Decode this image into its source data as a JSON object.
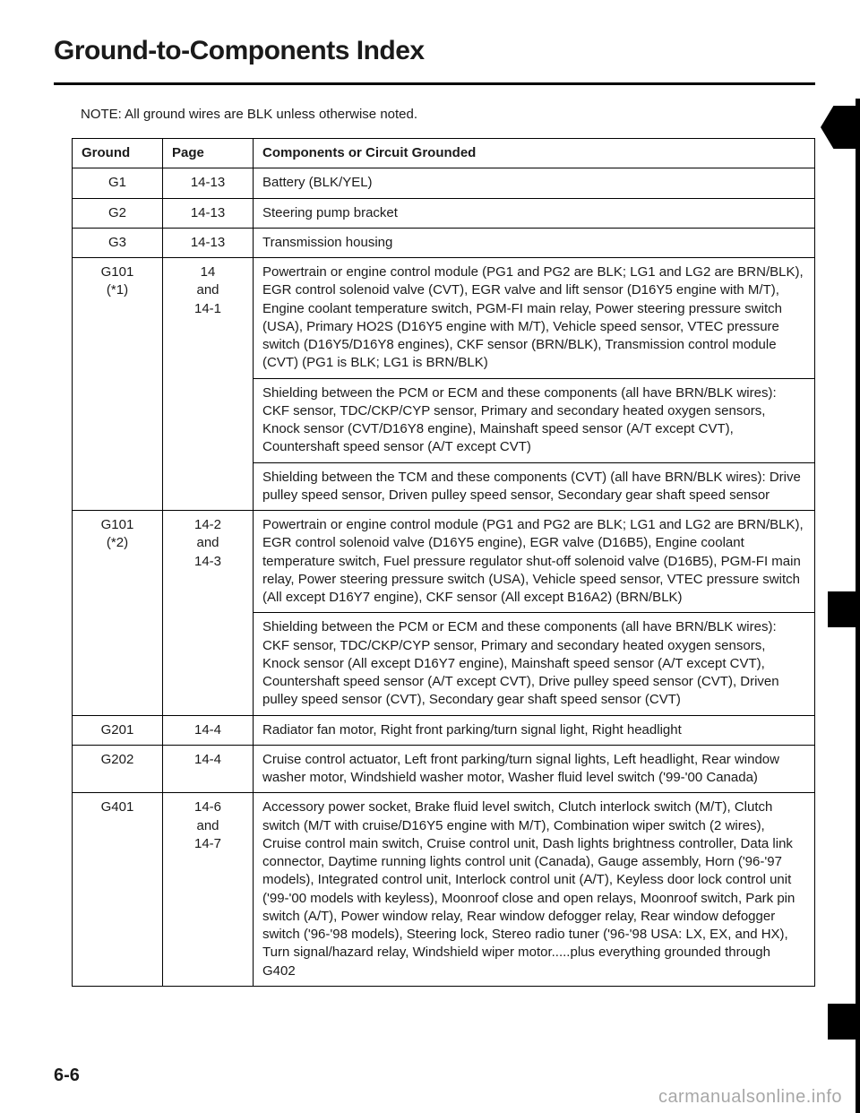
{
  "title": "Ground-to-Components Index",
  "note": "NOTE: All ground wires are BLK unless otherwise noted.",
  "headers": {
    "ground": "Ground",
    "page": "Page",
    "components": "Components or Circuit Grounded"
  },
  "rows": [
    {
      "ground": "G1",
      "page": "14-13",
      "blocks": [
        "Battery (BLK/YEL)"
      ]
    },
    {
      "ground": "G2",
      "page": "14-13",
      "blocks": [
        "Steering pump bracket"
      ]
    },
    {
      "ground": "G3",
      "page": "14-13",
      "blocks": [
        "Transmission housing"
      ]
    },
    {
      "ground": "G101\n(*1)",
      "page": "14\nand\n14-1",
      "blocks": [
        "Powertrain or engine control module (PG1 and PG2 are BLK; LG1 and LG2 are BRN/BLK), EGR control solenoid valve (CVT), EGR valve and lift sensor (D16Y5 engine with M/T), Engine coolant temperature switch, PGM-FI main relay, Power steering pressure switch (USA), Primary HO2S (D16Y5 engine with M/T), Vehicle speed sensor, VTEC pressure switch (D16Y5/D16Y8 engines), CKF sensor (BRN/BLK), Transmission control module (CVT) (PG1 is BLK; LG1 is BRN/BLK)",
        "Shielding between the PCM or ECM and these components (all have BRN/BLK wires): CKF sensor, TDC/CKP/CYP sensor, Primary and secondary heated oxygen sensors, Knock sensor (CVT/D16Y8 engine), Mainshaft speed sensor (A/T except CVT), Countershaft speed sensor (A/T except CVT)",
        "Shielding between the TCM and these components (CVT) (all have BRN/BLK wires): Drive pulley speed sensor, Driven pulley speed sensor, Secondary gear shaft speed sensor"
      ]
    },
    {
      "ground": "G101\n(*2)",
      "page": "14-2\nand\n14-3",
      "blocks": [
        "Powertrain or engine control module (PG1 and PG2 are BLK; LG1 and LG2 are BRN/BLK), EGR control solenoid valve (D16Y5 engine), EGR valve (D16B5), Engine coolant temperature switch, Fuel pressure regulator shut-off solenoid valve (D16B5), PGM-FI main relay, Power steering pressure switch (USA), Vehicle speed sensor, VTEC pressure switch (All except D16Y7 engine), CKF sensor (All except B16A2) (BRN/BLK)",
        "Shielding between the PCM or ECM and these components (all have BRN/BLK wires): CKF sensor, TDC/CKP/CYP sensor, Primary and secondary heated oxygen sensors, Knock sensor (All except D16Y7 engine), Mainshaft speed sensor (A/T except CVT), Countershaft speed sensor (A/T except CVT), Drive pulley speed sensor (CVT), Driven pulley speed sensor (CVT), Secondary gear shaft speed sensor (CVT)"
      ]
    },
    {
      "ground": "G201",
      "page": "14-4",
      "blocks": [
        "Radiator fan motor, Right front parking/turn signal light, Right headlight"
      ]
    },
    {
      "ground": "G202",
      "page": "14-4",
      "blocks": [
        "Cruise control actuator, Left front parking/turn signal lights, Left headlight, Rear window washer motor, Windshield washer motor, Washer fluid level switch ('99-'00 Canada)"
      ]
    },
    {
      "ground": "G401",
      "page": "14-6\nand\n14-7",
      "blocks": [
        "Accessory power socket, Brake fluid level switch, Clutch interlock switch (M/T), Clutch switch (M/T with cruise/D16Y5 engine with M/T), Combination wiper switch (2 wires), Cruise control main switch, Cruise control unit, Dash lights brightness controller, Data link connector, Daytime running lights control unit (Canada), Gauge assembly, Horn ('96-'97 models), Integrated control unit, Interlock control unit (A/T), Keyless door lock control unit ('99-'00 models with keyless), Moonroof close and open relays, Moonroof switch, Park pin switch (A/T), Power window relay, Rear window defogger relay, Rear window defogger switch ('96-'98 models), Steering lock, Stereo radio tuner ('96-'98 USA: LX, EX, and HX), Turn signal/hazard relay, Windshield wiper motor.....plus everything grounded through G402"
      ]
    }
  ],
  "page_number": "6-6",
  "watermark": "carmanualsonline.info"
}
